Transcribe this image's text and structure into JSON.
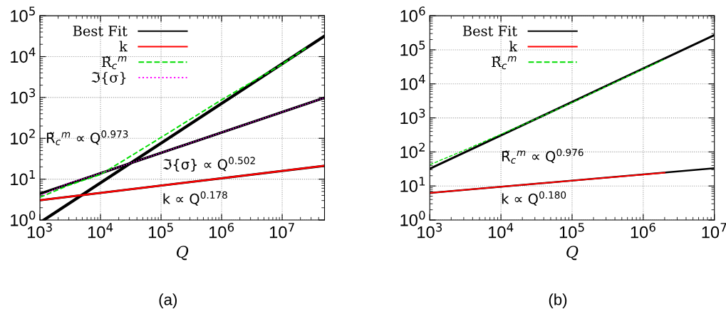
{
  "chart_data": [
    {
      "type": "line",
      "xlabel": "Q",
      "log": "xy",
      "grid": true,
      "legend": "top left",
      "xlim": [
        1000,
        50000000
      ],
      "ylim": [
        1,
        100000
      ],
      "xticks": [
        {
          "value": 1000,
          "label": "10$^{3}$"
        },
        {
          "value": 10000,
          "label": "10$^{4}$"
        },
        {
          "value": 100000,
          "label": "10$^{5}$"
        },
        {
          "value": 1000000,
          "label": "10$^{6}$"
        },
        {
          "value": 10000000,
          "label": "10$^{7}$"
        }
      ],
      "yticks": [
        {
          "value": 1,
          "label": "10$^{0}$"
        },
        {
          "value": 10,
          "label": "10$^{1}$"
        },
        {
          "value": 100,
          "label": "10$^{2}$"
        },
        {
          "value": 1000,
          "label": "10$^{3}$"
        },
        {
          "value": 10000,
          "label": "10$^{4}$"
        },
        {
          "value": 100000,
          "label": "10$^{5}$"
        }
      ],
      "series": [
        {
          "name": "Best Fit",
          "color": "#000000",
          "line_style": "solid",
          "x": [
            1160,
            50000000
          ],
          "values": [
            1,
            32000
          ]
        },
        {
          "color": "#000000",
          "line_style": "solid",
          "x": [
            1000,
            50000000
          ],
          "values": [
            4.4,
            980
          ]
        },
        {
          "color": "#000000",
          "line_style": "solid",
          "x": [
            1000,
            50000000
          ],
          "values": [
            3.04,
            21.2
          ]
        },
        {
          "name": "k",
          "color": "#ff0000",
          "line_style": "solid",
          "x": [
            1000,
            50000000
          ],
          "values": [
            3.04,
            21.2
          ]
        },
        {
          "name": "R̃$_{c}$$^{m}$",
          "color": "#00dd00",
          "line_style": "dashed",
          "x": [
            1000,
            3000,
            10000,
            30000,
            100000,
            1000000,
            10000000,
            25000000
          ],
          "values": [
            3.6,
            7.1,
            13,
            35,
            105,
            876,
            6500,
            16500
          ]
        },
        {
          "name": "ℑ{σ}",
          "color": "#ff00ff",
          "line_style": "dotted",
          "x": [
            1000,
            3000,
            6000,
            20000,
            100000,
            1000000,
            10000000,
            50000000
          ],
          "values": [
            3.86,
            8.1,
            11,
            19.7,
            44,
            139,
            440,
            980
          ]
        }
      ],
      "annotations": [
        "R̃$_{c}$$^{m}$ ∝ Q$^{0.973}$",
        "ℑ{σ} ∝ Q$^{0.502}$",
        "k ∝ Q$^{0.178}$",
        "(a)"
      ]
    },
    {
      "type": "line",
      "xlabel": "Q",
      "log": "xy",
      "grid": true,
      "legend": "top left",
      "xlim": [
        1000,
        10000000
      ],
      "ylim": [
        1,
        1000000
      ],
      "xticks": [
        {
          "value": 1000,
          "label": "10$^{3}$"
        },
        {
          "value": 10000,
          "label": "10$^{4}$"
        },
        {
          "value": 100000,
          "label": "10$^{5}$"
        },
        {
          "value": 1000000,
          "label": "10$^{6}$"
        },
        {
          "value": 10000000,
          "label": "10$^{7}$"
        }
      ],
      "yticks": [
        {
          "value": 1,
          "label": "10$^{0}$"
        },
        {
          "value": 10,
          "label": "10$^{1}$"
        },
        {
          "value": 100,
          "label": "10$^{2}$"
        },
        {
          "value": 1000,
          "label": "10$^{3}$"
        },
        {
          "value": 10000,
          "label": "10$^{4}$"
        },
        {
          "value": 100000,
          "label": "10$^{5}$"
        },
        {
          "value": 1000000,
          "label": "10$^{6}$"
        }
      ],
      "series": [
        {
          "name": "Best Fit",
          "color": "#000000",
          "line_style": "solid",
          "x": [
            1000,
            10000000
          ],
          "values": [
            32,
            270000
          ]
        },
        {
          "color": "#000000",
          "line_style": "solid",
          "x": [
            1000,
            10000000
          ],
          "values": [
            6.25,
            33.2
          ]
        },
        {
          "name": "k",
          "color": "#ff0000",
          "line_style": "solid",
          "x": [
            1000,
            2000000
          ],
          "values": [
            6.25,
            24.6
          ]
        },
        {
          "name": "R̃$_{c}$$^{m}$",
          "color": "#00dd00",
          "line_style": "dashed",
          "x": [
            1000,
            3000,
            10000,
            30000,
            100000,
            1000000,
            2000000
          ],
          "values": [
            42,
            110,
            330,
            900,
            2800,
            27000,
            53000
          ]
        }
      ],
      "annotations": [
        "R̃$_{c}$$^{m}$ ∝ Q$^{0.976}$",
        "k ∝ Q$^{0.180}$",
        "(b)"
      ]
    }
  ]
}
